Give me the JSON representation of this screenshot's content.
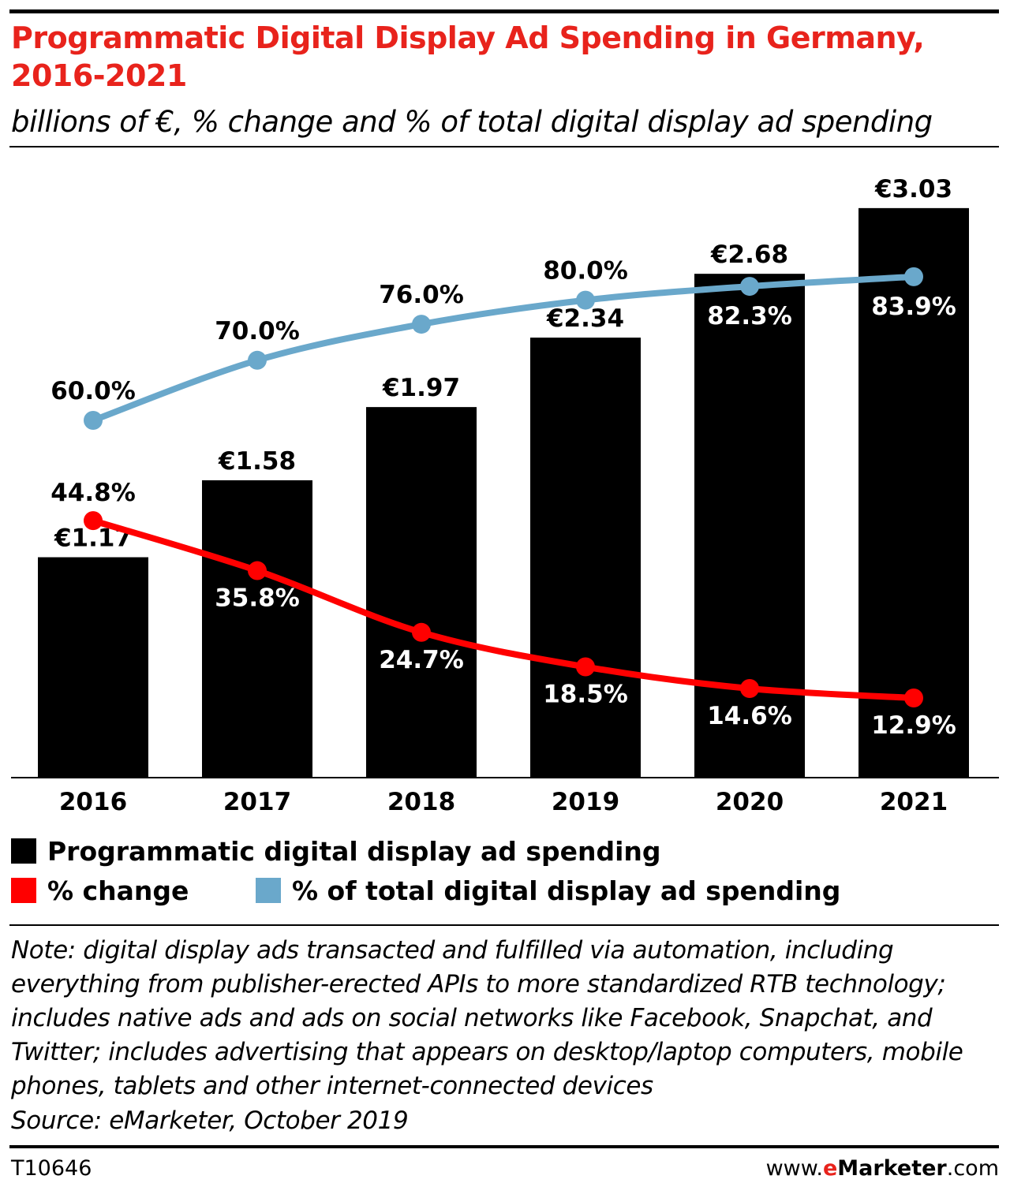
{
  "header": {
    "title": "Programmatic Digital Display Ad Spending in Germany, 2016-2021",
    "subtitle": "billions of €, % change and % of total digital display ad spending"
  },
  "colors": {
    "bars": "#000000",
    "change_line": "#ff0000",
    "share_line": "#6aa8cb",
    "title": "#e8231c"
  },
  "chart_data": {
    "type": "bar",
    "categories": [
      "2016",
      "2017",
      "2018",
      "2019",
      "2020",
      "2021"
    ],
    "series": [
      {
        "name": "Programmatic digital display ad spending",
        "kind": "bar",
        "unit": "billions of €",
        "values": [
          1.17,
          1.58,
          1.97,
          2.34,
          2.68,
          3.03
        ],
        "labels": [
          "€1.17",
          "€1.58",
          "€1.97",
          "€2.34",
          "€2.68",
          "€3.03"
        ],
        "color": "#000000"
      },
      {
        "name": "% change",
        "kind": "line",
        "unit": "%",
        "values": [
          44.8,
          35.8,
          24.7,
          18.5,
          14.6,
          12.9
        ],
        "labels": [
          "44.8%",
          "35.8%",
          "24.7%",
          "18.5%",
          "14.6%",
          "12.9%"
        ],
        "color": "#ff0000"
      },
      {
        "name": "% of total digital display ad spending",
        "kind": "line",
        "unit": "%",
        "values": [
          60.0,
          70.0,
          76.0,
          80.0,
          82.3,
          83.9
        ],
        "labels": [
          "60.0%",
          "70.0%",
          "76.0%",
          "80.0%",
          "82.3%",
          "83.9%"
        ],
        "color": "#6aa8cb"
      }
    ],
    "grid": false,
    "legend_position": "bottom-left"
  },
  "legend": [
    {
      "label": "Programmatic digital display ad spending",
      "color": "#000000"
    },
    {
      "label": "% change",
      "color": "#ff0000"
    },
    {
      "label": "% of total digital display ad spending",
      "color": "#6aa8cb"
    }
  ],
  "note": "Note: digital display ads transacted and fulfilled via automation, including everything from publisher-erected APIs to more standardized RTB technology; includes native ads and ads on social networks like Facebook, Snapchat, and Twitter; includes advertising that appears on desktop/laptop computers, mobile phones, tablets and other internet-connected devices",
  "source": "Source: eMarketer, October 2019",
  "footer": {
    "id": "T10646",
    "brand_prefix": "www.",
    "brand_e": "e",
    "brand_name": "Marketer",
    "brand_suffix": ".com"
  }
}
